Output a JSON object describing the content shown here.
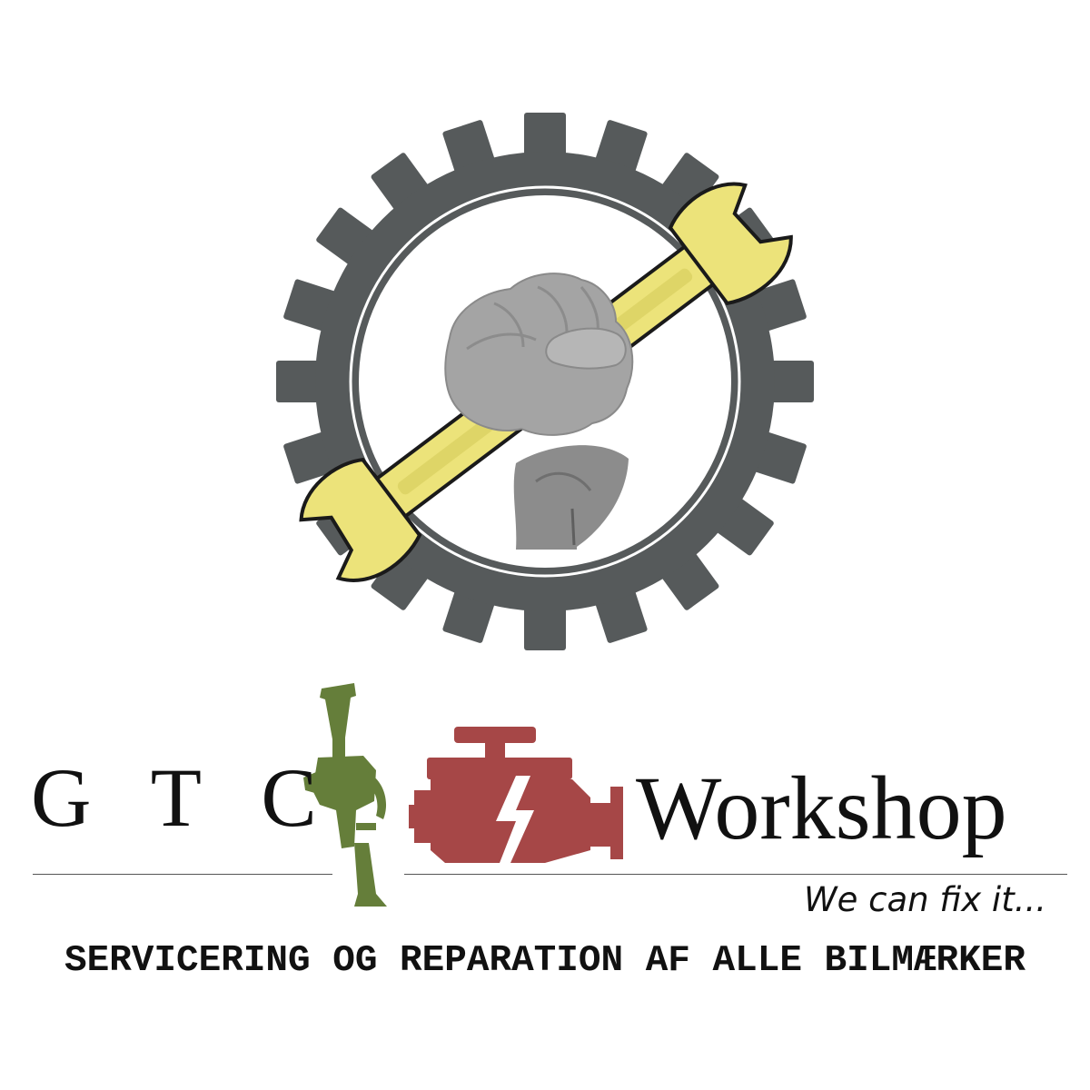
{
  "logo": {
    "brand_left": "G T C",
    "brand_right": "Workshop",
    "tagline": "We can fix it...",
    "services": "SERVICERING OG REPARATION AF ALLE BILMÆRKER",
    "icons": {
      "emblem": "gear-fist-wrench-icon",
      "spray": "spray-gun-icon",
      "engine": "engine-icon"
    },
    "colors": {
      "gear": "#565a5b",
      "wrench": "#ece37a",
      "wrench_outline": "#1a1a1a",
      "fist": "#a4a4a4",
      "spray_gun": "#657e3a",
      "engine": "#a64747",
      "text": "#111111"
    }
  }
}
